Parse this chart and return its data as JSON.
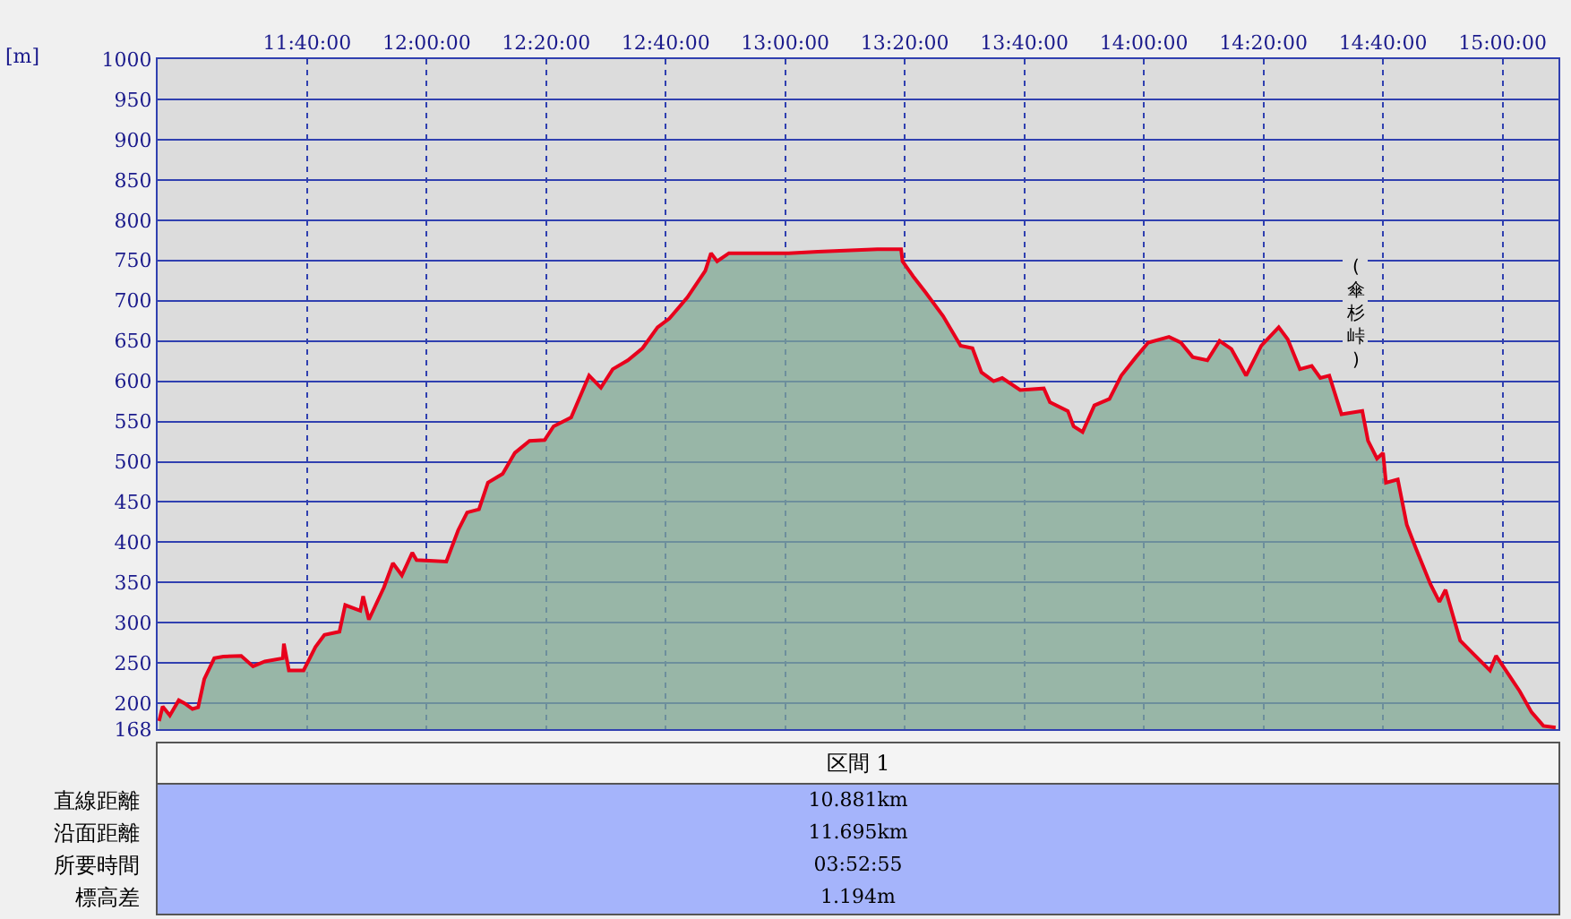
{
  "chart_data": {
    "type": "area",
    "ylabel": "[m]",
    "x": [
      11.254,
      11.264,
      11.284,
      11.309,
      11.325,
      11.347,
      11.363,
      11.38,
      11.408,
      11.433,
      11.483,
      11.516,
      11.549,
      11.599,
      11.602,
      11.616,
      11.657,
      11.69,
      11.715,
      11.757,
      11.773,
      11.815,
      11.823,
      11.839,
      11.881,
      11.906,
      11.931,
      11.96,
      11.972,
      12.055,
      12.088,
      12.113,
      12.146,
      12.171,
      12.212,
      12.246,
      12.287,
      12.329,
      12.354,
      12.403,
      12.453,
      12.486,
      12.519,
      12.561,
      12.602,
      12.644,
      12.677,
      12.727,
      12.777,
      12.793,
      12.81,
      12.843,
      13.01,
      13.091,
      13.257,
      13.323,
      13.327,
      13.357,
      13.39,
      13.44,
      13.489,
      13.522,
      13.547,
      13.581,
      13.605,
      13.655,
      13.721,
      13.738,
      13.788,
      13.804,
      13.829,
      13.862,
      13.904,
      13.937,
      13.978,
      14.012,
      14.07,
      14.103,
      14.136,
      14.177,
      14.211,
      14.244,
      14.285,
      14.327,
      14.376,
      14.401,
      14.435,
      14.468,
      14.492,
      14.517,
      14.551,
      14.609,
      14.625,
      14.65,
      14.667,
      14.675,
      14.708,
      14.733,
      14.758,
      14.799,
      14.824,
      14.841,
      14.882,
      14.924,
      14.965,
      14.982,
      15.015,
      15.048,
      15.081,
      15.114,
      15.148
    ],
    "series": [
      {
        "color": "#e8001c",
        "values": [
          178,
          196,
          185,
          204,
          200,
          193,
          195,
          230,
          256,
          258,
          259,
          246,
          252,
          256,
          274,
          241,
          241,
          270,
          285,
          289,
          322,
          315,
          333,
          304,
          344,
          374,
          359,
          387,
          378,
          376,
          415,
          437,
          441,
          474,
          485,
          511,
          526,
          527,
          544,
          555,
          607,
          592,
          615,
          626,
          641,
          667,
          678,
          704,
          737,
          759,
          749,
          759,
          759,
          761,
          764,
          764,
          749,
          730,
          711,
          681,
          644,
          641,
          611,
          600,
          604,
          589,
          591,
          574,
          563,
          544,
          537,
          570,
          578,
          607,
          630,
          648,
          655,
          648,
          630,
          626,
          650,
          640,
          607,
          644,
          667,
          652,
          615,
          619,
          604,
          607,
          559,
          563,
          526,
          504,
          511,
          474,
          478,
          422,
          393,
          348,
          326,
          341,
          278,
          259,
          241,
          259,
          237,
          215,
          189,
          172,
          170
        ]
      }
    ],
    "xlim": [
      11.25,
      15.156
    ],
    "xticks": [
      {
        "value": 11.6667,
        "label": "11:40:00"
      },
      {
        "value": 12,
        "label": "12:00:00"
      },
      {
        "value": 12.3333,
        "label": "12:20:00"
      },
      {
        "value": 12.6667,
        "label": "12:40:00"
      },
      {
        "value": 13,
        "label": "13:00:00"
      },
      {
        "value": 13.3333,
        "label": "13:20:00"
      },
      {
        "value": 13.6667,
        "label": "13:40:00"
      },
      {
        "value": 14,
        "label": "14:00:00"
      },
      {
        "value": 14.3333,
        "label": "14:20:00"
      },
      {
        "value": 14.6667,
        "label": "14:40:00"
      },
      {
        "value": 15,
        "label": "15:00:00"
      }
    ],
    "ylim": [
      168,
      1000
    ],
    "yticks": [
      168,
      200,
      250,
      300,
      350,
      400,
      450,
      500,
      550,
      600,
      650,
      700,
      750,
      800,
      850,
      900,
      950,
      1000
    ],
    "grid": true,
    "annotations": [
      "(傘杉峠)",
      "区間 1",
      "直線距離",
      "10.881km",
      "沿面距離",
      "11.695km",
      "所要時間",
      "03:52:55",
      "標高差",
      "1.194m"
    ]
  }
}
